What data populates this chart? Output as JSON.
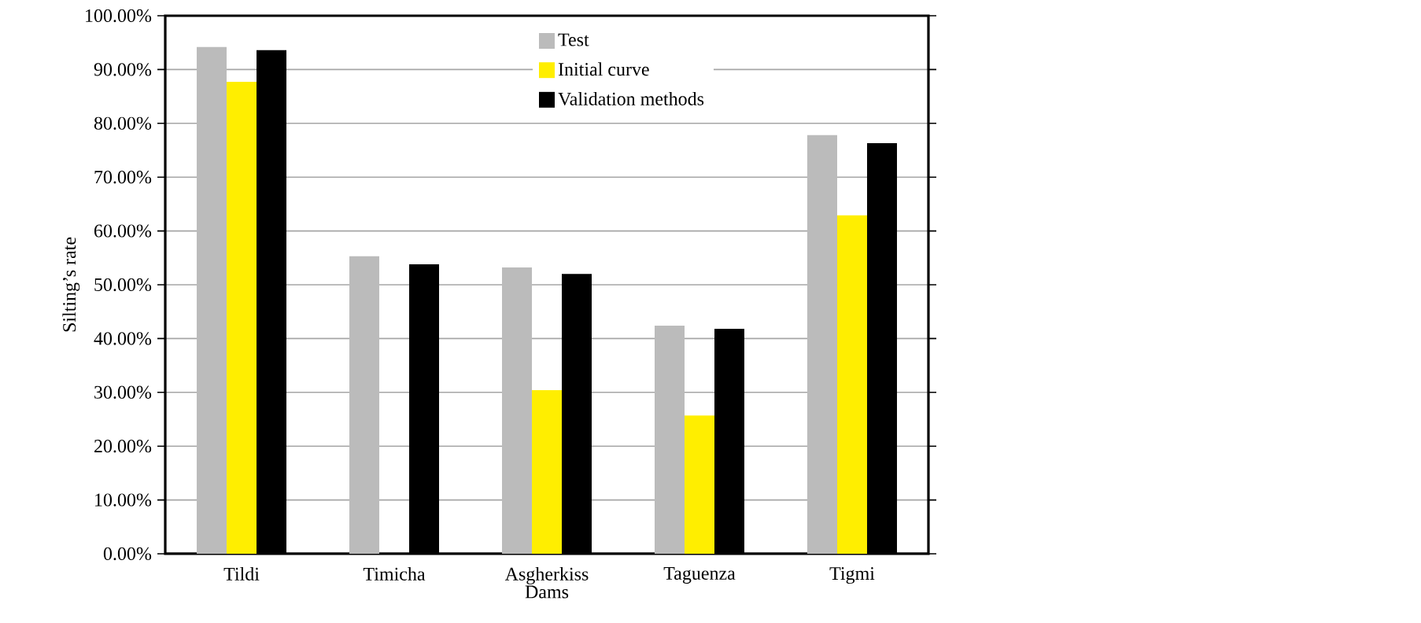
{
  "chart_data": {
    "type": "bar",
    "xlabel": "Dams",
    "ylabel": "Silting’s rate",
    "categories": [
      "Tildi",
      "Timicha",
      "Asgherkiss",
      "Taguenza",
      "Tigmi"
    ],
    "series": [
      {
        "name": "Test",
        "color": "#bbbbbb",
        "values": [
          94.2,
          55.3,
          53.2,
          42.4,
          77.8
        ]
      },
      {
        "name": "Initial curve",
        "color": "#ffee00",
        "values": [
          87.7,
          null,
          30.4,
          25.7,
          62.9
        ]
      },
      {
        "name": "Validation methods",
        "color": "#000000",
        "values": [
          93.6,
          53.8,
          52.0,
          41.8,
          76.3
        ]
      }
    ],
    "ylim": [
      0,
      100
    ],
    "yticks": [
      {
        "value": 0,
        "label": "0.00%"
      },
      {
        "value": 10,
        "label": "10.00%"
      },
      {
        "value": 20,
        "label": "20.00%"
      },
      {
        "value": 30,
        "label": "30.00%"
      },
      {
        "value": 40,
        "label": "40.00%"
      },
      {
        "value": 50,
        "label": "50.00%"
      },
      {
        "value": 60,
        "label": "60.00%"
      },
      {
        "value": 70,
        "label": "70.00%"
      },
      {
        "value": 80,
        "label": "80.00%"
      },
      {
        "value": 90,
        "label": "90.00%"
      },
      {
        "value": 100,
        "label": "100.00%"
      }
    ],
    "grid": "y",
    "legend": "top"
  }
}
